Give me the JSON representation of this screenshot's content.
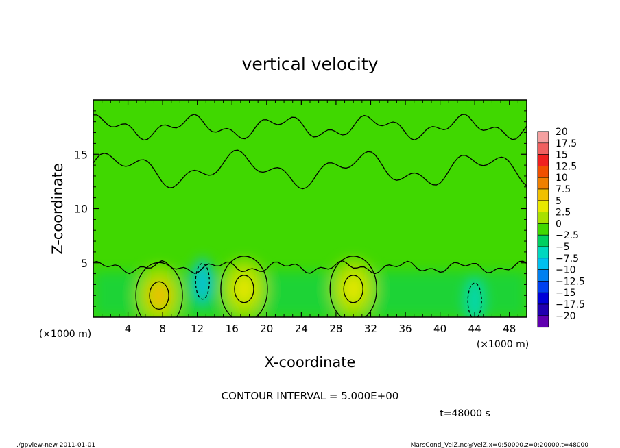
{
  "chart_data": {
    "type": "heatmap",
    "title": "vertical velocity",
    "xlabel": "X-coordinate",
    "ylabel": "Z-coordinate",
    "x_unit": "(×1000 m)",
    "y_unit": "(×1000 m)",
    "xlim": [
      0,
      50
    ],
    "ylim": [
      0,
      20
    ],
    "x_ticks": [
      4,
      8,
      12,
      16,
      20,
      24,
      28,
      32,
      36,
      40,
      44,
      48
    ],
    "y_ticks": [
      5,
      10,
      15
    ],
    "colorbar": {
      "levels": [
        20,
        17.5,
        15,
        12.5,
        10,
        7.5,
        5,
        2.5,
        0,
        -2.5,
        -5,
        -7.5,
        -10,
        -12.5,
        -15,
        -17.5,
        -20
      ],
      "labels": [
        "20",
        "17.5",
        "15",
        "12.5",
        "10",
        "7.5",
        "5",
        "2.5",
        "0",
        "−2.5",
        "−5",
        "−7.5",
        "−10",
        "−12.5",
        "−15",
        "−17.5",
        "−20"
      ],
      "colors": [
        "#f4a0a0",
        "#f06060",
        "#f02020",
        "#f05000",
        "#f08000",
        "#f0c000",
        "#e8e800",
        "#a8e000",
        "#40d800",
        "#00d060",
        "#00d8c0",
        "#00c0f0",
        "#0080f0",
        "#0040f0",
        "#0000d8",
        "#2000b0",
        "#6000b0"
      ]
    },
    "updraft_cores": [
      {
        "x": 7.6,
        "z": 2.0,
        "level": 7.5
      },
      {
        "x": 17.4,
        "z": 2.6,
        "level": 5
      },
      {
        "x": 30.0,
        "z": 2.6,
        "level": 5
      }
    ],
    "downdraft_cores": [
      {
        "x": 12.6,
        "z": 3.3,
        "level": -7.5
      },
      {
        "x": 44.0,
        "z": 1.5,
        "level": -5
      }
    ],
    "contour_interval_text": "CONTOUR INTERVAL = 5.000E+00",
    "time_text": "t=48000 s"
  },
  "footer": {
    "left": "./gpview-new   2011-01-01",
    "right": "MarsCond_VelZ.nc@VelZ,x=0:50000,z=0:20000,t=48000"
  }
}
